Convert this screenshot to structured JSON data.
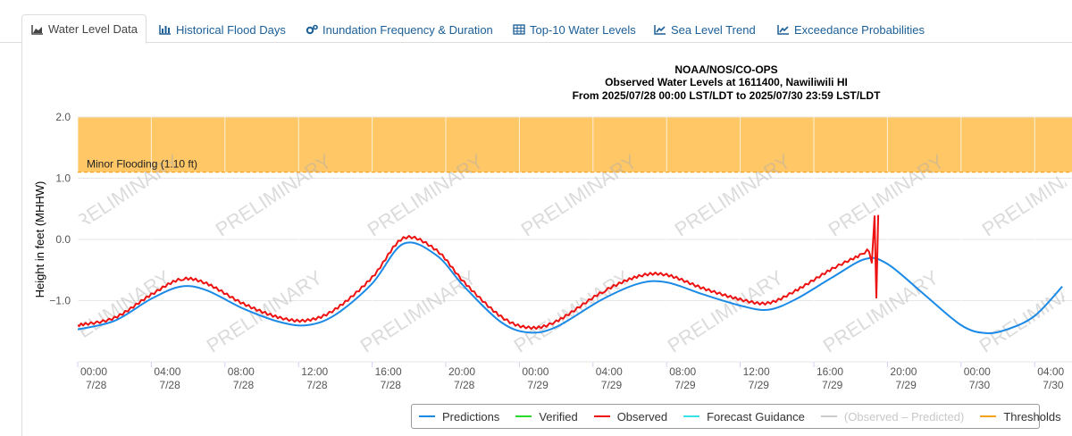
{
  "tabs": [
    {
      "label": "Water Level Data",
      "icon": "area-chart-icon",
      "active": true
    },
    {
      "label": "Historical Flood Days",
      "icon": "bar-chart-icon",
      "active": false
    },
    {
      "label": "Inundation Frequency & Duration",
      "icon": "gears-icon",
      "active": false
    },
    {
      "label": "Top-10 Water Levels",
      "icon": "table-icon",
      "active": false
    },
    {
      "label": "Sea Level Trend",
      "icon": "line-chart-icon",
      "active": false
    },
    {
      "label": "Exceedance Probabilities",
      "icon": "line-chart-icon",
      "active": false
    }
  ],
  "chart_data": {
    "type": "line",
    "title": "NOAA/NOS/CO-OPS",
    "subtitle_line1": "Observed Water Levels at 1611400, Nawiliwili HI",
    "subtitle_line2": "From 2025/07/28 00:00 LST/LDT to 2025/07/30 23:59 LST/LDT",
    "ylabel": "Height in feet (MHHW)",
    "ylim": [
      -2.0,
      2.0
    ],
    "xlim_hours": [
      0,
      52
    ],
    "yticks": [
      {
        "value": 2.0,
        "label": "2.0"
      },
      {
        "value": 1.0,
        "label": "1.0"
      },
      {
        "value": 0.0,
        "label": "0.0"
      },
      {
        "value": -1.0,
        "label": "−1.0"
      }
    ],
    "xticks": [
      {
        "h": 0,
        "time": "00:00",
        "date": "7/28"
      },
      {
        "h": 4,
        "time": "04:00",
        "date": "7/28"
      },
      {
        "h": 8,
        "time": "08:00",
        "date": "7/28"
      },
      {
        "h": 12,
        "time": "12:00",
        "date": "7/28"
      },
      {
        "h": 16,
        "time": "16:00",
        "date": "7/28"
      },
      {
        "h": 20,
        "time": "20:00",
        "date": "7/28"
      },
      {
        "h": 24,
        "time": "00:00",
        "date": "7/29"
      },
      {
        "h": 28,
        "time": "04:00",
        "date": "7/29"
      },
      {
        "h": 32,
        "time": "08:00",
        "date": "7/29"
      },
      {
        "h": 36,
        "time": "12:00",
        "date": "7/29"
      },
      {
        "h": 40,
        "time": "16:00",
        "date": "7/29"
      },
      {
        "h": 44,
        "time": "20:00",
        "date": "7/29"
      },
      {
        "h": 48,
        "time": "00:00",
        "date": "7/30"
      },
      {
        "h": 52,
        "time": "04:00",
        "date": "7/30"
      }
    ],
    "threshold": {
      "label": "Minor Flooding (1.10 ft)",
      "value": 1.1,
      "color": "#f7a21b",
      "band_color": "#ffc766"
    },
    "watermark": "PRELIMINARY",
    "series": [
      {
        "name": "Predictions",
        "color": "#1b8ae6",
        "points": [
          [
            0,
            -1.47
          ],
          [
            2,
            -1.33
          ],
          [
            4,
            -0.97
          ],
          [
            5.6,
            -0.77
          ],
          [
            7,
            -0.83
          ],
          [
            9,
            -1.13
          ],
          [
            11,
            -1.35
          ],
          [
            12.5,
            -1.4
          ],
          [
            14,
            -1.23
          ],
          [
            16,
            -0.72
          ],
          [
            17.7,
            -0.07
          ],
          [
            19.5,
            -0.26
          ],
          [
            21,
            -0.77
          ],
          [
            23,
            -1.35
          ],
          [
            24.5,
            -1.52
          ],
          [
            26,
            -1.43
          ],
          [
            28.5,
            -0.98
          ],
          [
            30.5,
            -0.72
          ],
          [
            32,
            -0.7
          ],
          [
            34,
            -0.9
          ],
          [
            36,
            -1.08
          ],
          [
            37.5,
            -1.15
          ],
          [
            39,
            -0.98
          ],
          [
            41,
            -0.62
          ],
          [
            42.8,
            -0.32
          ],
          [
            44,
            -0.4
          ],
          [
            46,
            -0.9
          ],
          [
            48,
            -1.4
          ],
          [
            49.3,
            -1.53
          ],
          [
            50.5,
            -1.47
          ],
          [
            52,
            -1.25
          ],
          [
            53.5,
            -0.77
          ]
        ]
      },
      {
        "name": "Verified",
        "color": "#2ad92a",
        "points": []
      },
      {
        "name": "Observed",
        "color": "#ee1111",
        "points": [
          [
            0,
            -1.4
          ],
          [
            2,
            -1.28
          ],
          [
            4,
            -0.9
          ],
          [
            5.6,
            -0.65
          ],
          [
            7,
            -0.72
          ],
          [
            9,
            -1.05
          ],
          [
            11,
            -1.28
          ],
          [
            12.5,
            -1.32
          ],
          [
            14,
            -1.14
          ],
          [
            16,
            -0.62
          ],
          [
            17.7,
            0.02
          ],
          [
            19.5,
            -0.18
          ],
          [
            21,
            -0.7
          ],
          [
            23,
            -1.26
          ],
          [
            24.5,
            -1.44
          ],
          [
            26,
            -1.34
          ],
          [
            28.5,
            -0.86
          ],
          [
            30.5,
            -0.6
          ],
          [
            32,
            -0.58
          ],
          [
            34,
            -0.8
          ],
          [
            36,
            -0.98
          ],
          [
            37.5,
            -1.04
          ],
          [
            39,
            -0.84
          ],
          [
            41,
            -0.48
          ],
          [
            42.5,
            -0.26
          ],
          [
            43.0,
            -0.18
          ],
          [
            43.15,
            -0.38
          ],
          [
            43.3,
            0.38
          ],
          [
            43.4,
            -0.95
          ],
          [
            43.5,
            0.4
          ]
        ]
      },
      {
        "name": "Forecast Guidance",
        "color": "#39e1e8",
        "points": []
      },
      {
        "name": "(Observed – Predicted)",
        "color": "#cccccc",
        "points": [],
        "hidden": true
      },
      {
        "name": "Thresholds",
        "color": "#f7a21b",
        "points": []
      }
    ]
  }
}
